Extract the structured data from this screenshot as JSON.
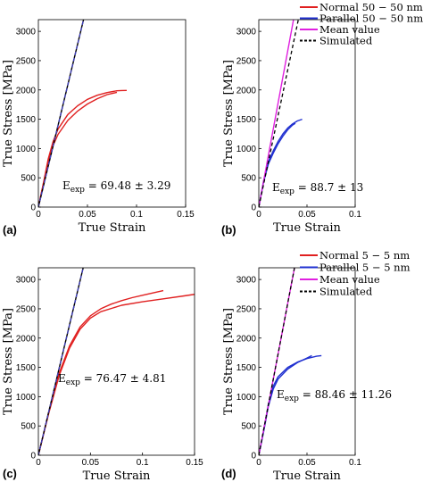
{
  "chart_data": [
    {
      "type": "line",
      "panel_label": "(a)",
      "xlabel": "True Strain",
      "ylabel": "True Stress [MPa]",
      "xlim": [
        0,
        0.15
      ],
      "ylim": [
        0,
        3200
      ],
      "xticks": [
        "0",
        "0.05",
        "0.1",
        "0.15"
      ],
      "yticks": [
        "0",
        "500",
        "1000",
        "1500",
        "2000",
        "2500",
        "3000"
      ],
      "annotation": {
        "base": "E",
        "sub": "exp",
        "text": " = 69.48 ± 3.29"
      },
      "series": [
        {
          "color": "#e02020",
          "dashed": false,
          "x": [
            0,
            0.005,
            0.01,
            0.015,
            0.02,
            0.03,
            0.04,
            0.05,
            0.06,
            0.07,
            0.08,
            0.085,
            0.09
          ],
          "y": [
            0,
            400,
            820,
            1120,
            1330,
            1580,
            1730,
            1840,
            1910,
            1955,
            1985,
            1990,
            1992
          ]
        },
        {
          "color": "#e02020",
          "dashed": false,
          "x": [
            0,
            0.005,
            0.01,
            0.015,
            0.02,
            0.03,
            0.04,
            0.05,
            0.06,
            0.07,
            0.08
          ],
          "y": [
            0,
            390,
            780,
            1050,
            1240,
            1480,
            1640,
            1760,
            1850,
            1920,
            1960
          ]
        },
        {
          "color": "#000000",
          "dashed": false,
          "x": [
            0,
            0.046
          ],
          "y": [
            0,
            3200
          ]
        },
        {
          "color": "#4040c0",
          "dashed": true,
          "x": [
            0,
            0.046
          ],
          "y": [
            0,
            3200
          ]
        }
      ]
    },
    {
      "type": "line",
      "panel_label": "(b)",
      "xlabel": "True Strain",
      "ylabel": "True Stress [MPa]",
      "xlim": [
        0,
        0.1
      ],
      "ylim": [
        0,
        3200
      ],
      "xticks": [
        "0",
        "0.05",
        "0.1"
      ],
      "yticks": [
        "0",
        "500",
        "1000",
        "1500",
        "2000",
        "2500",
        "3000"
      ],
      "annotation": {
        "base": "E",
        "sub": "exp",
        "text": " = 88.7 ± 13"
      },
      "legend": [
        {
          "label": "Normal 50 − 50 nm",
          "color": "#e02020",
          "dashed": false
        },
        {
          "label": "Parallel 50 − 50 nm",
          "color": "#2030d0",
          "dashed": false
        },
        {
          "label": "Mean value",
          "color": "#e020e0",
          "dashed": false
        },
        {
          "label": "Simulated",
          "color": "#000000",
          "dashed": true
        }
      ],
      "series": [
        {
          "color": "#2030d0",
          "dashed": false,
          "x": [
            0,
            0.005,
            0.01,
            0.015,
            0.02,
            0.025,
            0.03,
            0.035,
            0.04,
            0.045
          ],
          "y": [
            0,
            450,
            780,
            960,
            1120,
            1250,
            1350,
            1420,
            1470,
            1500
          ]
        },
        {
          "color": "#2030d0",
          "dashed": false,
          "x": [
            0,
            0.005,
            0.01,
            0.015,
            0.02,
            0.025,
            0.03,
            0.035,
            0.038
          ],
          "y": [
            0,
            430,
            740,
            920,
            1080,
            1210,
            1320,
            1400,
            1430
          ]
        },
        {
          "color": "#e020e0",
          "dashed": false,
          "x": [
            0,
            0.036
          ],
          "y": [
            0,
            3200
          ]
        },
        {
          "color": "#000000",
          "dashed": true,
          "x": [
            0,
            0.041
          ],
          "y": [
            0,
            3200
          ]
        }
      ]
    },
    {
      "type": "line",
      "panel_label": "(c)",
      "xlabel": "True Strain",
      "ylabel": "True Stress [MPa]",
      "xlim": [
        0,
        0.15
      ],
      "ylim": [
        0,
        3200
      ],
      "xticks": [
        "0",
        "0.05",
        "0.1",
        "0.15"
      ],
      "yticks": [
        "0",
        "500",
        "1000",
        "1500",
        "2000",
        "2500",
        "3000"
      ],
      "annotation": {
        "base": "E",
        "sub": "exp",
        "text": " = 76.47 ± 4.81"
      },
      "series": [
        {
          "color": "#e02020",
          "dashed": false,
          "x": [
            0,
            0.01,
            0.02,
            0.03,
            0.04,
            0.05,
            0.06,
            0.07,
            0.08,
            0.09,
            0.1,
            0.11,
            0.12
          ],
          "y": [
            0,
            740,
            1400,
            1870,
            2190,
            2380,
            2500,
            2580,
            2640,
            2690,
            2730,
            2770,
            2810
          ]
        },
        {
          "color": "#e02020",
          "dashed": false,
          "x": [
            0,
            0.01,
            0.02,
            0.03,
            0.04,
            0.05,
            0.06,
            0.08,
            0.1,
            0.12,
            0.14,
            0.155
          ],
          "y": [
            0,
            720,
            1360,
            1830,
            2150,
            2340,
            2450,
            2560,
            2620,
            2670,
            2720,
            2760
          ]
        },
        {
          "color": "#000000",
          "dashed": false,
          "x": [
            0,
            0.043
          ],
          "y": [
            0,
            3200
          ]
        },
        {
          "color": "#4040c0",
          "dashed": true,
          "x": [
            0,
            0.043
          ],
          "y": [
            0,
            3200
          ]
        }
      ]
    },
    {
      "type": "line",
      "panel_label": "(d)",
      "xlabel": "True Strain",
      "ylabel": "True Stress [MPa]",
      "xlim": [
        0,
        0.1
      ],
      "ylim": [
        0,
        3200
      ],
      "xticks": [
        "0",
        "0.05",
        "0.1"
      ],
      "yticks": [
        "0",
        "500",
        "1000",
        "1500",
        "2000",
        "2500",
        "3000"
      ],
      "annotation": {
        "base": "E",
        "sub": "exp",
        "text": " = 88.46 ± 11.26"
      },
      "legend": [
        {
          "label": "Normal 5 − 5 nm",
          "color": "#e02020",
          "dashed": false
        },
        {
          "label": "Parallel 5 − 5 nm",
          "color": "#2030d0",
          "dashed": false
        },
        {
          "label": "Mean value",
          "color": "#e020e0",
          "dashed": false
        },
        {
          "label": "Simulated",
          "color": "#000000",
          "dashed": true
        }
      ],
      "series": [
        {
          "color": "#2030d0",
          "dashed": false,
          "x": [
            0,
            0.005,
            0.01,
            0.015,
            0.02,
            0.03,
            0.04,
            0.05,
            0.06,
            0.065
          ],
          "y": [
            0,
            420,
            880,
            1180,
            1340,
            1500,
            1590,
            1650,
            1690,
            1700
          ]
        },
        {
          "color": "#2030d0",
          "dashed": false,
          "x": [
            0,
            0.005,
            0.01,
            0.015,
            0.02,
            0.03,
            0.04,
            0.05,
            0.055
          ],
          "y": [
            0,
            400,
            840,
            1130,
            1300,
            1470,
            1580,
            1660,
            1700
          ]
        },
        {
          "color": "#e020e0",
          "dashed": false,
          "x": [
            0,
            0.037
          ],
          "y": [
            0,
            3200
          ]
        },
        {
          "color": "#000000",
          "dashed": true,
          "x": [
            0,
            0.037
          ],
          "y": [
            0,
            3200
          ]
        }
      ]
    }
  ]
}
